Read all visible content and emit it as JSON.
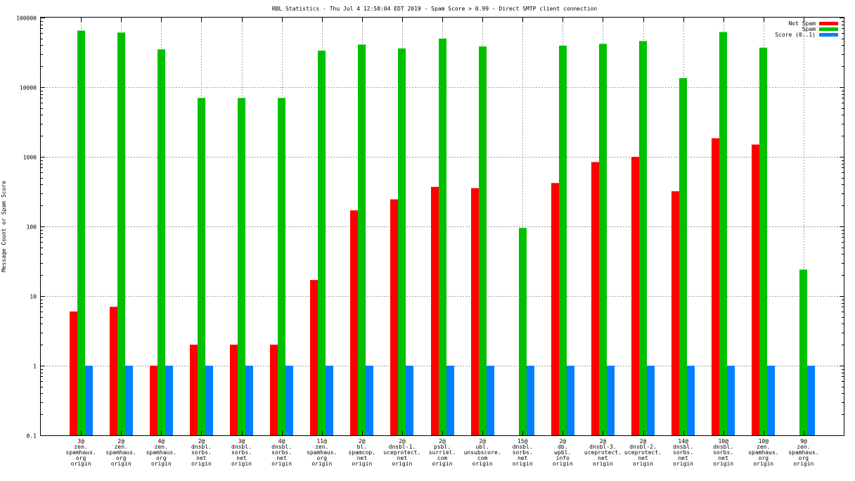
{
  "chart_data": {
    "type": "bar",
    "title": "RBL Statistics - Thu Jul  4 12:58:04 EDT 2019 - Spam Score > 0.99 - Direct SMTP client connection",
    "ylabel": "Message Count or Spam Score",
    "xlabel": "",
    "yscale": "log",
    "ylim": [
      0.1,
      100000
    ],
    "yticks": [
      "0.1",
      "1",
      "10",
      "100",
      "1000",
      "10000",
      "100000"
    ],
    "grid": true,
    "legend_position": "top-right",
    "categories": [
      [
        "3@",
        "zen.",
        "spamhaus.",
        "org",
        "origin"
      ],
      [
        "2@",
        "zen.",
        "spamhaus.",
        "org",
        "origin"
      ],
      [
        "4@",
        "zen.",
        "spamhaus.",
        "org",
        "origin"
      ],
      [
        "2@",
        "dnsbl.",
        "sorbs.",
        "net",
        "origin"
      ],
      [
        "3@",
        "dnsbl.",
        "sorbs.",
        "net",
        "origin"
      ],
      [
        "4@",
        "dnsbl.",
        "sorbs.",
        "net",
        "origin"
      ],
      [
        "11@",
        "zen.",
        "spamhaus.",
        "org",
        "origin"
      ],
      [
        "2@",
        "bl.",
        "spamcop.",
        "net",
        "origin"
      ],
      [
        "2@",
        "dnsbl-1.",
        "uceprotect.",
        "net",
        "origin"
      ],
      [
        "2@",
        "psbl.",
        "surriel.",
        "com",
        "origin"
      ],
      [
        "2@",
        "ubl.",
        "unsubscore.",
        "com",
        "origin"
      ],
      [
        "15@",
        "dnsbl.",
        "sorbs.",
        "net",
        "origin"
      ],
      [
        "2@",
        "db.",
        "wpbl.",
        "info",
        "origin"
      ],
      [
        "2@",
        "dnsbl-3.",
        "uceprotect.",
        "net",
        "origin"
      ],
      [
        "2@",
        "dnsbl-2.",
        "uceprotect.",
        "net",
        "origin"
      ],
      [
        "14@",
        "dnsbl.",
        "sorbs.",
        "net",
        "origin"
      ],
      [
        "10@",
        "dnsbl.",
        "sorbs.",
        "net",
        "origin"
      ],
      [
        "10@",
        "zen.",
        "spamhaus.",
        "org",
        "origin"
      ],
      [
        "9@",
        "zen.",
        "spamhaus.",
        "org",
        "origin"
      ]
    ],
    "series": [
      {
        "name": "Not Spam",
        "color": "#ff0000",
        "values": [
          6,
          7,
          1,
          2,
          2,
          2,
          17,
          170,
          245,
          370,
          355,
          null,
          420,
          840,
          1000,
          320,
          1850,
          1500,
          null
        ]
      },
      {
        "name": "Spam",
        "color": "#00c000",
        "values": [
          65000,
          61000,
          35000,
          7000,
          7000,
          7000,
          33500,
          41000,
          36000,
          50000,
          38500,
          95,
          39500,
          42000,
          46000,
          13500,
          62000,
          37000,
          24
        ]
      },
      {
        "name": "Score (0..1)",
        "color": "#0080ff",
        "values": [
          1,
          1,
          1,
          1,
          1,
          1,
          1,
          1,
          1,
          1,
          1,
          1,
          1,
          1,
          1,
          1,
          1,
          1,
          1
        ]
      }
    ]
  }
}
